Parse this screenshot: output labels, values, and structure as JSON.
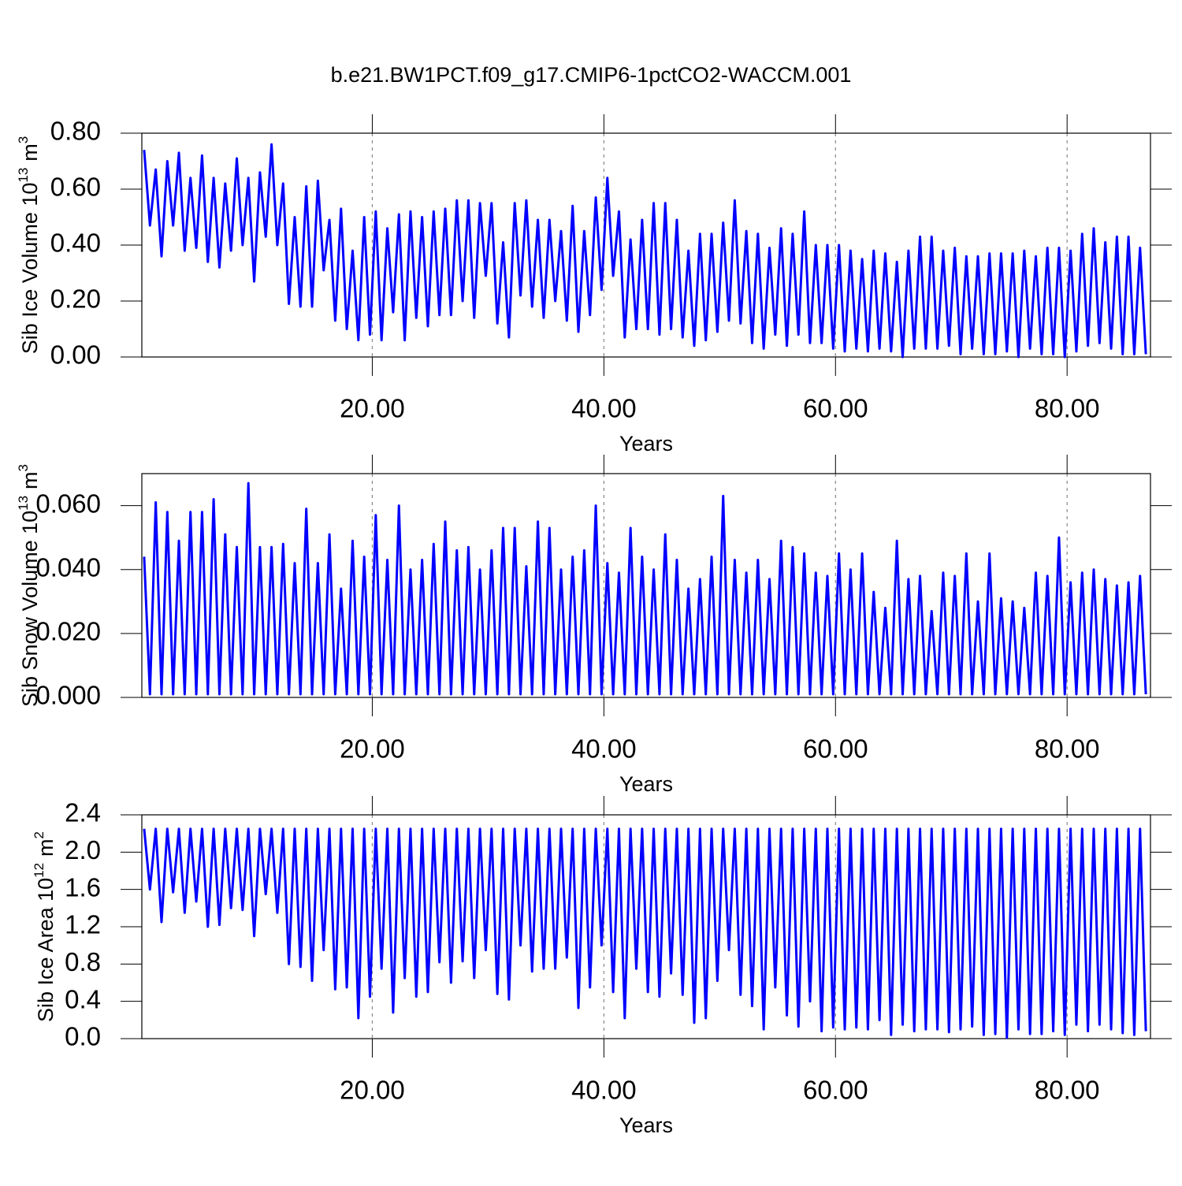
{
  "chart_data": [
    {
      "type": "line",
      "title": "b.e21.BW1PCT.f09_g17.CMIP6-1pctCO2-WACCM.001",
      "xlabel": "Years",
      "ylabel": {
        "text": "Sib Ice Volume 10",
        "power": "13",
        "unit": "m",
        "unit_power": "3"
      },
      "color": "#0000ff",
      "grid": true,
      "xlim": [
        0.1,
        87.2
      ],
      "xticks": [
        {
          "value": 20,
          "label": "20.00"
        },
        {
          "value": 40,
          "label": "40.00"
        },
        {
          "value": 60,
          "label": "60.00"
        },
        {
          "value": 80,
          "label": "80.00"
        }
      ],
      "ylim": [
        0,
        0.8
      ],
      "yticks": [
        {
          "value": 0,
          "label": "0.00"
        },
        {
          "value": 0.2,
          "label": "0.20"
        },
        {
          "value": 0.4,
          "label": "0.40"
        },
        {
          "value": 0.6,
          "label": "0.60"
        },
        {
          "value": 0.8,
          "label": "0.80"
        }
      ],
      "x": [
        0.3,
        0.8,
        1.3,
        1.8,
        2.3,
        2.8,
        3.3,
        3.8,
        4.3,
        4.8,
        5.3,
        5.8,
        6.3,
        6.8,
        7.3,
        7.8,
        8.3,
        8.8,
        9.3,
        9.8,
        10.3,
        10.8,
        11.3,
        11.8,
        12.3,
        12.8,
        13.3,
        13.8,
        14.3,
        14.8,
        15.3,
        15.8,
        16.3,
        16.8,
        17.3,
        17.8,
        18.3,
        18.8,
        19.3,
        19.8,
        20.3,
        20.8,
        21.3,
        21.8,
        22.3,
        22.8,
        23.3,
        23.8,
        24.3,
        24.8,
        25.3,
        25.8,
        26.3,
        26.8,
        27.3,
        27.8,
        28.3,
        28.8,
        29.3,
        29.8,
        30.3,
        30.8,
        31.3,
        31.8,
        32.3,
        32.8,
        33.3,
        33.8,
        34.3,
        34.8,
        35.3,
        35.8,
        36.3,
        36.8,
        37.3,
        37.8,
        38.3,
        38.8,
        39.3,
        39.8,
        40.3,
        40.8,
        41.3,
        41.8,
        42.3,
        42.8,
        43.3,
        43.8,
        44.3,
        44.8,
        45.3,
        45.8,
        46.3,
        46.8,
        47.3,
        47.8,
        48.3,
        48.8,
        49.3,
        49.8,
        50.3,
        50.8,
        51.3,
        51.8,
        52.3,
        52.8,
        53.3,
        53.8,
        54.3,
        54.8,
        55.3,
        55.8,
        56.3,
        56.8,
        57.3,
        57.8,
        58.3,
        58.8,
        59.3,
        59.8,
        60.3,
        60.8,
        61.3,
        61.8,
        62.3,
        62.8,
        63.3,
        63.8,
        64.3,
        64.8,
        65.3,
        65.8,
        66.3,
        66.8,
        67.3,
        67.8,
        68.3,
        68.8,
        69.3,
        69.8,
        70.3,
        70.8,
        71.3,
        71.8,
        72.3,
        72.8,
        73.3,
        73.8,
        74.3,
        74.8,
        75.3,
        75.8,
        76.3,
        76.8,
        77.3,
        77.8,
        78.3,
        78.8,
        79.3,
        79.8,
        80.3,
        80.8,
        81.3,
        81.8,
        82.3,
        82.8,
        83.3,
        83.8,
        84.3,
        84.8,
        85.3,
        85.8,
        86.3,
        86.8
      ],
      "values": [
        0.74,
        0.47,
        0.67,
        0.36,
        0.7,
        0.47,
        0.73,
        0.38,
        0.64,
        0.39,
        0.72,
        0.34,
        0.64,
        0.32,
        0.62,
        0.38,
        0.71,
        0.4,
        0.64,
        0.27,
        0.66,
        0.43,
        0.76,
        0.4,
        0.62,
        0.19,
        0.5,
        0.18,
        0.61,
        0.18,
        0.63,
        0.31,
        0.49,
        0.13,
        0.53,
        0.1,
        0.38,
        0.06,
        0.5,
        0.08,
        0.52,
        0.06,
        0.46,
        0.16,
        0.51,
        0.06,
        0.52,
        0.14,
        0.5,
        0.11,
        0.52,
        0.15,
        0.53,
        0.15,
        0.56,
        0.2,
        0.56,
        0.14,
        0.55,
        0.29,
        0.55,
        0.12,
        0.41,
        0.07,
        0.55,
        0.22,
        0.56,
        0.18,
        0.49,
        0.14,
        0.49,
        0.2,
        0.45,
        0.13,
        0.54,
        0.09,
        0.45,
        0.15,
        0.57,
        0.24,
        0.64,
        0.29,
        0.52,
        0.07,
        0.42,
        0.1,
        0.49,
        0.1,
        0.55,
        0.08,
        0.55,
        0.1,
        0.49,
        0.07,
        0.38,
        0.04,
        0.44,
        0.06,
        0.44,
        0.09,
        0.48,
        0.13,
        0.56,
        0.12,
        0.45,
        0.05,
        0.44,
        0.03,
        0.39,
        0.08,
        0.46,
        0.04,
        0.44,
        0.08,
        0.52,
        0.05,
        0.4,
        0.05,
        0.4,
        0.03,
        0.4,
        0.02,
        0.38,
        0.03,
        0.35,
        0.02,
        0.38,
        0.03,
        0.37,
        0.02,
        0.34,
        0,
        0.38,
        0.03,
        0.43,
        0.03,
        0.43,
        0.03,
        0.38,
        0.04,
        0.39,
        0.01,
        0.36,
        0.03,
        0.36,
        0.01,
        0.37,
        0.01,
        0.37,
        0.02,
        0.37,
        0,
        0.38,
        0.03,
        0.36,
        0.01,
        0.39,
        0.01,
        0.39,
        0,
        0.38,
        0.02,
        0.44,
        0.04,
        0.46,
        0.05,
        0.41,
        0.03,
        0.43,
        0.01,
        0.43,
        0.01,
        0.39,
        0.01
      ]
    },
    {
      "type": "line",
      "xlabel": "Years",
      "ylabel": {
        "text": "Sib Snow Volume 10",
        "power": "13",
        "unit": "m",
        "unit_power": "3"
      },
      "color": "#0000ff",
      "grid": true,
      "xlim": [
        0.1,
        87.2
      ],
      "xticks": [
        {
          "value": 20,
          "label": "20.00"
        },
        {
          "value": 40,
          "label": "40.00"
        },
        {
          "value": 60,
          "label": "60.00"
        },
        {
          "value": 80,
          "label": "80.00"
        }
      ],
      "ylim": [
        0,
        0.07
      ],
      "yticks": [
        {
          "value": 0,
          "label": "0.000"
        },
        {
          "value": 0.02,
          "label": "0.020"
        },
        {
          "value": 0.04,
          "label": "0.040"
        },
        {
          "value": 0.06,
          "label": "0.060"
        }
      ],
      "x": [
        0.3,
        0.8,
        1.3,
        1.8,
        2.3,
        2.8,
        3.3,
        3.8,
        4.3,
        4.8,
        5.3,
        5.8,
        6.3,
        6.8,
        7.3,
        7.8,
        8.3,
        8.8,
        9.3,
        9.8,
        10.3,
        10.8,
        11.3,
        11.8,
        12.3,
        12.8,
        13.3,
        13.8,
        14.3,
        14.8,
        15.3,
        15.8,
        16.3,
        16.8,
        17.3,
        17.8,
        18.3,
        18.8,
        19.3,
        19.8,
        20.3,
        20.8,
        21.3,
        21.8,
        22.3,
        22.8,
        23.3,
        23.8,
        24.3,
        24.8,
        25.3,
        25.8,
        26.3,
        26.8,
        27.3,
        27.8,
        28.3,
        28.8,
        29.3,
        29.8,
        30.3,
        30.8,
        31.3,
        31.8,
        32.3,
        32.8,
        33.3,
        33.8,
        34.3,
        34.8,
        35.3,
        35.8,
        36.3,
        36.8,
        37.3,
        37.8,
        38.3,
        38.8,
        39.3,
        39.8,
        40.3,
        40.8,
        41.3,
        41.8,
        42.3,
        42.8,
        43.3,
        43.8,
        44.3,
        44.8,
        45.3,
        45.8,
        46.3,
        46.8,
        47.3,
        47.8,
        48.3,
        48.8,
        49.3,
        49.8,
        50.3,
        50.8,
        51.3,
        51.8,
        52.3,
        52.8,
        53.3,
        53.8,
        54.3,
        54.8,
        55.3,
        55.8,
        56.3,
        56.8,
        57.3,
        57.8,
        58.3,
        58.8,
        59.3,
        59.8,
        60.3,
        60.8,
        61.3,
        61.8,
        62.3,
        62.8,
        63.3,
        63.8,
        64.3,
        64.8,
        65.3,
        65.8,
        66.3,
        66.8,
        67.3,
        67.8,
        68.3,
        68.8,
        69.3,
        69.8,
        70.3,
        70.8,
        71.3,
        71.8,
        72.3,
        72.8,
        73.3,
        73.8,
        74.3,
        74.8,
        75.3,
        75.8,
        76.3,
        76.8,
        77.3,
        77.8,
        78.3,
        78.8,
        79.3,
        79.8,
        80.3,
        80.8,
        81.3,
        81.8,
        82.3,
        82.8,
        83.3,
        83.8,
        84.3,
        84.8,
        85.3,
        85.8,
        86.3,
        86.8
      ],
      "values": [
        0.044,
        0.001,
        0.061,
        0.001,
        0.058,
        0.001,
        0.049,
        0.001,
        0.058,
        0.001,
        0.058,
        0.001,
        0.062,
        0.001,
        0.051,
        0.001,
        0.047,
        0.001,
        0.067,
        0.001,
        0.047,
        0.001,
        0.047,
        0.001,
        0.048,
        0.001,
        0.042,
        0.001,
        0.059,
        0.001,
        0.042,
        0.001,
        0.051,
        0.001,
        0.034,
        0.001,
        0.049,
        0.001,
        0.044,
        0.001,
        0.057,
        0.001,
        0.043,
        0.001,
        0.06,
        0.001,
        0.04,
        0.001,
        0.043,
        0.001,
        0.048,
        0.001,
        0.055,
        0.001,
        0.046,
        0.001,
        0.047,
        0.001,
        0.04,
        0.001,
        0.046,
        0.001,
        0.053,
        0.001,
        0.053,
        0.001,
        0.041,
        0.001,
        0.055,
        0.001,
        0.053,
        0.001,
        0.04,
        0.001,
        0.044,
        0.001,
        0.046,
        0.001,
        0.06,
        0.001,
        0.042,
        0.001,
        0.039,
        0.001,
        0.053,
        0.001,
        0.044,
        0.001,
        0.04,
        0.001,
        0.051,
        0.001,
        0.043,
        0.001,
        0.034,
        0.001,
        0.037,
        0.001,
        0.044,
        0.001,
        0.063,
        0.001,
        0.043,
        0.001,
        0.039,
        0.001,
        0.043,
        0.001,
        0.037,
        0.001,
        0.049,
        0.001,
        0.047,
        0.001,
        0.045,
        0.001,
        0.039,
        0.001,
        0.038,
        0.001,
        0.045,
        0.001,
        0.04,
        0.001,
        0.045,
        0.001,
        0.033,
        0.001,
        0.028,
        0.001,
        0.049,
        0.001,
        0.037,
        0.001,
        0.038,
        0.001,
        0.027,
        0.001,
        0.039,
        0.001,
        0.038,
        0.001,
        0.045,
        0.001,
        0.03,
        0.001,
        0.045,
        0.001,
        0.031,
        0.001,
        0.03,
        0.001,
        0.028,
        0.001,
        0.039,
        0.001,
        0.038,
        0.001,
        0.05,
        0.001,
        0.036,
        0.001,
        0.039,
        0.001,
        0.04,
        0.001,
        0.037,
        0.001,
        0.035,
        0.001,
        0.036,
        0.001,
        0.038,
        0.001
      ]
    },
    {
      "type": "line",
      "xlabel": "Years",
      "ylabel": {
        "text": "Sib Ice Area 10",
        "power": "12",
        "unit": "m",
        "unit_power": "2"
      },
      "color": "#0000ff",
      "grid": true,
      "xlim": [
        0.1,
        87.2
      ],
      "xticks": [
        {
          "value": 20,
          "label": "20.00"
        },
        {
          "value": 40,
          "label": "40.00"
        },
        {
          "value": 60,
          "label": "60.00"
        },
        {
          "value": 80,
          "label": "80.00"
        }
      ],
      "ylim": [
        0,
        2.4
      ],
      "yticks": [
        {
          "value": 0,
          "label": "0.0"
        },
        0.4,
        0.8,
        1.2,
        1.6,
        {
          "value": 2,
          "label": "2.0"
        },
        2.4
      ],
      "x": [
        0.3,
        0.8,
        1.3,
        1.8,
        2.3,
        2.8,
        3.3,
        3.8,
        4.3,
        4.8,
        5.3,
        5.8,
        6.3,
        6.8,
        7.3,
        7.8,
        8.3,
        8.8,
        9.3,
        9.8,
        10.3,
        10.8,
        11.3,
        11.8,
        12.3,
        12.8,
        13.3,
        13.8,
        14.3,
        14.8,
        15.3,
        15.8,
        16.3,
        16.8,
        17.3,
        17.8,
        18.3,
        18.8,
        19.3,
        19.8,
        20.3,
        20.8,
        21.3,
        21.8,
        22.3,
        22.8,
        23.3,
        23.8,
        24.3,
        24.8,
        25.3,
        25.8,
        26.3,
        26.8,
        27.3,
        27.8,
        28.3,
        28.8,
        29.3,
        29.8,
        30.3,
        30.8,
        31.3,
        31.8,
        32.3,
        32.8,
        33.3,
        33.8,
        34.3,
        34.8,
        35.3,
        35.8,
        36.3,
        36.8,
        37.3,
        37.8,
        38.3,
        38.8,
        39.3,
        39.8,
        40.3,
        40.8,
        41.3,
        41.8,
        42.3,
        42.8,
        43.3,
        43.8,
        44.3,
        44.8,
        45.3,
        45.8,
        46.3,
        46.8,
        47.3,
        47.8,
        48.3,
        48.8,
        49.3,
        49.8,
        50.3,
        50.8,
        51.3,
        51.8,
        52.3,
        52.8,
        53.3,
        53.8,
        54.3,
        54.8,
        55.3,
        55.8,
        56.3,
        56.8,
        57.3,
        57.8,
        58.3,
        58.8,
        59.3,
        59.8,
        60.3,
        60.8,
        61.3,
        61.8,
        62.3,
        62.8,
        63.3,
        63.8,
        64.3,
        64.8,
        65.3,
        65.8,
        66.3,
        66.8,
        67.3,
        67.8,
        68.3,
        68.8,
        69.3,
        69.8,
        70.3,
        70.8,
        71.3,
        71.8,
        72.3,
        72.8,
        73.3,
        73.8,
        74.3,
        74.8,
        75.3,
        75.8,
        76.3,
        76.8,
        77.3,
        77.8,
        78.3,
        78.8,
        79.3,
        79.8,
        80.3,
        80.8,
        81.3,
        81.8,
        82.3,
        82.8,
        83.3,
        83.8,
        84.3,
        84.8,
        85.3,
        85.8,
        86.3,
        86.8
      ],
      "values": [
        2.25,
        1.6,
        2.25,
        1.25,
        2.25,
        1.57,
        2.25,
        1.35,
        2.25,
        1.47,
        2.25,
        1.2,
        2.25,
        1.22,
        2.25,
        1.4,
        2.25,
        1.38,
        2.25,
        1.1,
        2.25,
        1.55,
        2.25,
        1.35,
        2.25,
        0.8,
        2.25,
        0.77,
        2.25,
        0.62,
        2.25,
        0.95,
        2.25,
        0.53,
        2.25,
        0.55,
        2.25,
        0.22,
        2.25,
        0.45,
        2.25,
        0.75,
        2.25,
        0.28,
        2.25,
        0.65,
        2.25,
        0.45,
        2.25,
        0.5,
        2.25,
        0.82,
        2.25,
        0.6,
        2.25,
        0.83,
        2.25,
        0.65,
        2.25,
        0.95,
        2.25,
        0.48,
        2.25,
        0.42,
        2.25,
        1.0,
        2.25,
        0.72,
        2.25,
        0.75,
        2.25,
        0.75,
        2.25,
        0.87,
        2.25,
        0.33,
        2.25,
        0.55,
        2.25,
        1.0,
        2.25,
        0.5,
        2.25,
        0.22,
        2.25,
        0.75,
        2.25,
        0.5,
        2.25,
        0.45,
        2.25,
        0.7,
        2.25,
        0.47,
        2.25,
        0.17,
        2.25,
        0.22,
        2.25,
        0.62,
        2.25,
        0.95,
        2.25,
        0.47,
        2.25,
        0.35,
        2.25,
        0.1,
        2.25,
        0.55,
        2.25,
        0.25,
        2.25,
        0.13,
        2.25,
        0.4,
        2.25,
        0.08,
        2.25,
        0.12,
        2.25,
        0.1,
        2.25,
        0.12,
        2.25,
        0.1,
        2.25,
        0.2,
        2.25,
        0.04,
        2.25,
        0.15,
        2.25,
        0.08,
        2.25,
        0.1,
        2.25,
        0.1,
        2.25,
        0.07,
        2.25,
        0.1,
        2.25,
        0.13,
        2.25,
        0.04,
        2.25,
        0.05,
        2.25,
        0.01,
        2.25,
        0.1,
        2.25,
        0.05,
        2.25,
        0.05,
        2.25,
        0.08,
        2.25,
        0.04,
        2.25,
        0.15,
        2.25,
        0.08,
        2.25,
        0.15,
        2.25,
        0.1,
        2.25,
        0.06,
        2.25,
        0.04,
        2.25,
        0.08
      ]
    }
  ]
}
